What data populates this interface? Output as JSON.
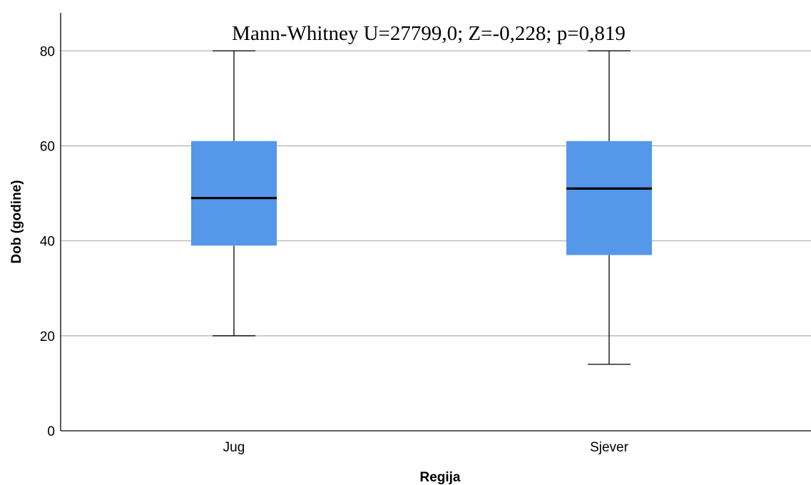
{
  "chart_data": {
    "type": "box",
    "title": "Mann-Whitney U=27799,0; Z=-0,228; p=0,819",
    "xlabel": "Regija",
    "ylabel": "Dob (godine)",
    "ylim": [
      0,
      88
    ],
    "yticks": [
      0,
      20,
      40,
      60,
      80
    ],
    "grid": true,
    "categories": [
      "Jug",
      "Sjever"
    ],
    "boxes": [
      {
        "category": "Jug",
        "min": 20,
        "q1": 39,
        "median": 49,
        "q3": 61,
        "max": 80
      },
      {
        "category": "Sjever",
        "min": 14,
        "q1": 37,
        "median": 51,
        "q3": 61,
        "max": 80
      }
    ],
    "colors": {
      "box_fill": "#5597e9",
      "median": "#000000",
      "grid": "#b5b5b5",
      "axis": "#000000"
    }
  }
}
